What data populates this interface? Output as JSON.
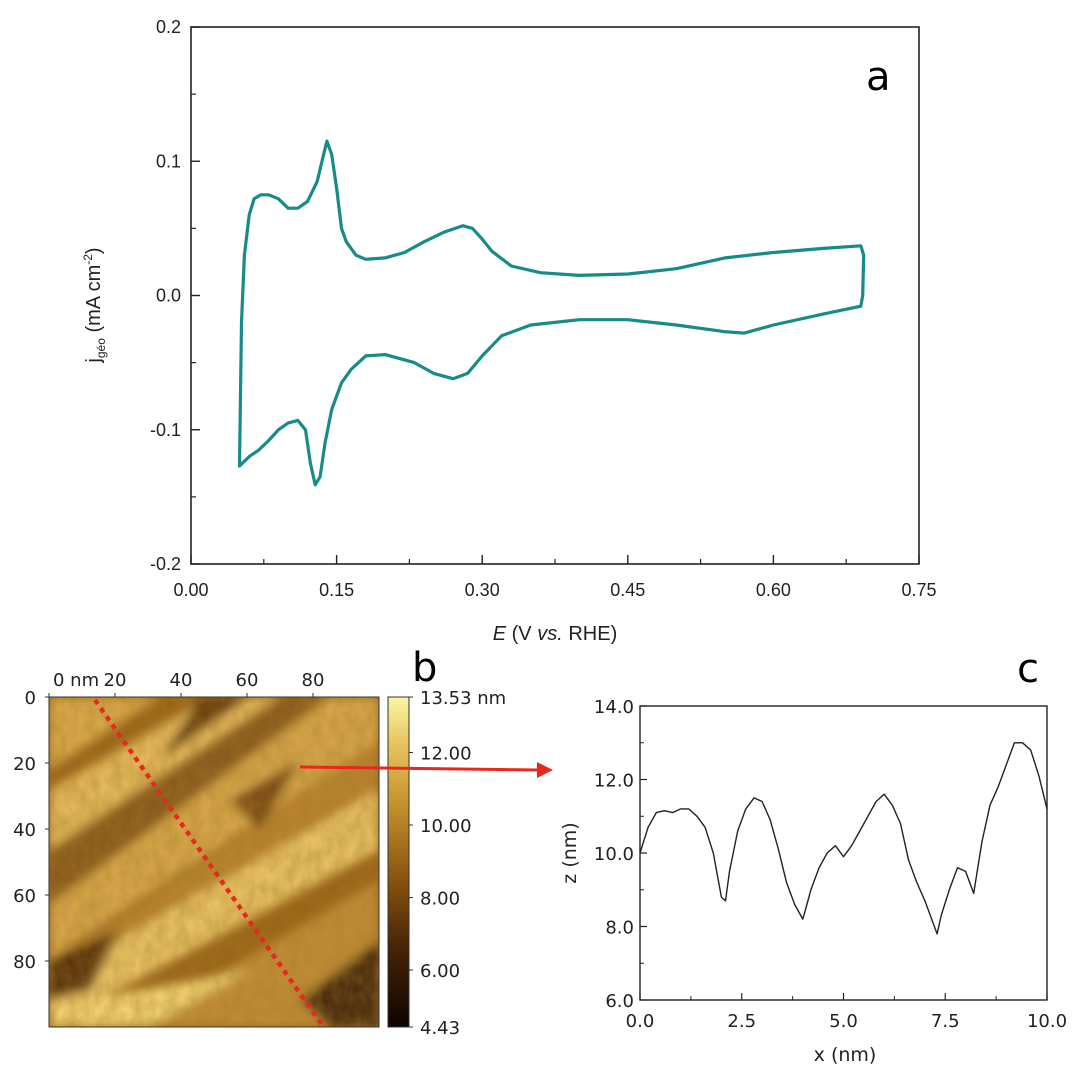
{
  "panel_a": {
    "letter": "a",
    "xlabel_italic": "E",
    "xlabel_rest": " (V ",
    "xlabel_vs": "vs.",
    "xlabel_end": " RHE)",
    "ylabel_j": "j",
    "ylabel_sub": "géo",
    "ylabel_unit": " (mA cm",
    "ylabel_sup": "-2",
    "ylabel_close": ")",
    "line_color": "#178a8a"
  },
  "panel_b": {
    "letter": "b",
    "x_ticks": [
      "0 nm",
      "20",
      "40",
      "60",
      "80"
    ],
    "y_ticks": [
      "0",
      "20",
      "40",
      "60",
      "80"
    ],
    "colorbar_ticks": [
      "13.53 nm",
      "12.00",
      "10.00",
      "8.00",
      "6.00",
      "4.43"
    ],
    "colorbar_values": [
      13.53,
      12.0,
      10.0,
      8.0,
      6.0,
      4.43
    ],
    "line_color": "#e8281e"
  },
  "panel_c": {
    "letter": "c",
    "xlabel": "x (nm)",
    "ylabel": "z (nm)"
  },
  "chart_data": [
    {
      "type": "line",
      "title": "",
      "xlabel": "E (V vs. RHE)",
      "ylabel": "jgéo (mA cm-2)",
      "xlim": [
        0.0,
        0.75
      ],
      "ylim": [
        -0.2,
        0.2
      ],
      "x_ticks": [
        "0.00",
        "0.15",
        "0.30",
        "0.45",
        "0.60",
        "0.75"
      ],
      "y_ticks": [
        "0.2",
        "0.1",
        "0.0",
        "-0.1",
        "-0.2"
      ],
      "grid": false,
      "series": [
        {
          "points": [
            [
              0.05,
              -0.127
            ],
            [
              0.052,
              -0.02
            ],
            [
              0.055,
              0.03
            ],
            [
              0.06,
              0.06
            ],
            [
              0.065,
              0.072
            ],
            [
              0.072,
              0.075
            ],
            [
              0.08,
              0.075
            ],
            [
              0.09,
              0.072
            ],
            [
              0.1,
              0.065
            ],
            [
              0.11,
              0.065
            ],
            [
              0.12,
              0.07
            ],
            [
              0.13,
              0.085
            ],
            [
              0.135,
              0.1
            ],
            [
              0.14,
              0.115
            ],
            [
              0.145,
              0.105
            ],
            [
              0.15,
              0.08
            ],
            [
              0.155,
              0.05
            ],
            [
              0.16,
              0.04
            ],
            [
              0.17,
              0.03
            ],
            [
              0.18,
              0.027
            ],
            [
              0.2,
              0.028
            ],
            [
              0.22,
              0.032
            ],
            [
              0.24,
              0.04
            ],
            [
              0.26,
              0.047
            ],
            [
              0.28,
              0.052
            ],
            [
              0.29,
              0.05
            ],
            [
              0.3,
              0.042
            ],
            [
              0.31,
              0.033
            ],
            [
              0.33,
              0.022
            ],
            [
              0.36,
              0.017
            ],
            [
              0.4,
              0.015
            ],
            [
              0.45,
              0.016
            ],
            [
              0.5,
              0.02
            ],
            [
              0.55,
              0.028
            ],
            [
              0.6,
              0.032
            ],
            [
              0.65,
              0.035
            ],
            [
              0.69,
              0.037
            ],
            [
              0.693,
              0.03
            ],
            [
              0.692,
              0.0
            ],
            [
              0.69,
              -0.008
            ],
            [
              0.65,
              -0.014
            ],
            [
              0.6,
              -0.022
            ],
            [
              0.57,
              -0.028
            ],
            [
              0.55,
              -0.027
            ],
            [
              0.5,
              -0.022
            ],
            [
              0.45,
              -0.018
            ],
            [
              0.4,
              -0.018
            ],
            [
              0.35,
              -0.022
            ],
            [
              0.32,
              -0.03
            ],
            [
              0.3,
              -0.045
            ],
            [
              0.285,
              -0.058
            ],
            [
              0.27,
              -0.062
            ],
            [
              0.25,
              -0.058
            ],
            [
              0.23,
              -0.05
            ],
            [
              0.2,
              -0.044
            ],
            [
              0.18,
              -0.045
            ],
            [
              0.165,
              -0.055
            ],
            [
              0.155,
              -0.065
            ],
            [
              0.145,
              -0.085
            ],
            [
              0.138,
              -0.11
            ],
            [
              0.133,
              -0.135
            ],
            [
              0.128,
              -0.141
            ],
            [
              0.123,
              -0.125
            ],
            [
              0.118,
              -0.1
            ],
            [
              0.11,
              -0.093
            ],
            [
              0.1,
              -0.095
            ],
            [
              0.09,
              -0.1
            ],
            [
              0.08,
              -0.108
            ],
            [
              0.07,
              -0.115
            ],
            [
              0.06,
              -0.12
            ],
            [
              0.05,
              -0.127
            ]
          ]
        }
      ],
      "annotations": [
        "a"
      ]
    },
    {
      "type": "heatmap",
      "title": "",
      "x_ticks": [
        "0 nm",
        "20",
        "40",
        "60",
        "80"
      ],
      "y_ticks": [
        "0",
        "20",
        "40",
        "60",
        "80"
      ],
      "xlim": [
        0,
        100
      ],
      "ylim": [
        0,
        100
      ],
      "colorbar": {
        "min": 4.43,
        "max": 13.53,
        "unit": "nm",
        "ticks": [
          "13.53 nm",
          "12.00",
          "10.00",
          "8.00",
          "6.00",
          "4.43"
        ]
      },
      "profile_line": [
        [
          14,
          16
        ],
        [
          83,
          100
        ]
      ],
      "annotations": [
        "b"
      ]
    },
    {
      "type": "line",
      "title": "",
      "xlabel": "x (nm)",
      "ylabel": "z (nm)",
      "xlim": [
        0.0,
        10.0
      ],
      "ylim": [
        6.0,
        14.0
      ],
      "x_ticks": [
        "0.0",
        "2.5",
        "5.0",
        "7.5",
        "10.0"
      ],
      "y_ticks": [
        "14.0",
        "12.0",
        "10.0",
        "8.0",
        "6.0"
      ],
      "grid": false,
      "series": [
        {
          "x": [
            0.0,
            0.2,
            0.4,
            0.6,
            0.8,
            1.0,
            1.2,
            1.4,
            1.6,
            1.8,
            2.0,
            2.1,
            2.2,
            2.4,
            2.6,
            2.8,
            3.0,
            3.2,
            3.4,
            3.6,
            3.8,
            4.0,
            4.1,
            4.2,
            4.4,
            4.6,
            4.8,
            5.0,
            5.2,
            5.4,
            5.6,
            5.8,
            6.0,
            6.2,
            6.4,
            6.6,
            6.8,
            7.0,
            7.2,
            7.3,
            7.4,
            7.6,
            7.8,
            8.0,
            8.2,
            8.4,
            8.6,
            8.8,
            9.0,
            9.2,
            9.4,
            9.6,
            9.8,
            10.0
          ],
          "y": [
            10.0,
            10.7,
            11.1,
            11.15,
            11.1,
            11.2,
            11.2,
            11.0,
            10.7,
            10.0,
            8.8,
            8.7,
            9.5,
            10.6,
            11.2,
            11.5,
            11.4,
            10.9,
            10.1,
            9.2,
            8.6,
            8.2,
            8.6,
            9.0,
            9.6,
            10.0,
            10.2,
            9.9,
            10.2,
            10.6,
            11.0,
            11.4,
            11.6,
            11.3,
            10.8,
            9.8,
            9.2,
            8.7,
            8.1,
            7.8,
            8.3,
            9.0,
            9.6,
            9.5,
            8.9,
            10.3,
            11.3,
            11.8,
            12.4,
            13.0,
            13.0,
            12.8,
            12.1,
            11.2
          ]
        }
      ],
      "annotations": [
        "c"
      ]
    }
  ]
}
